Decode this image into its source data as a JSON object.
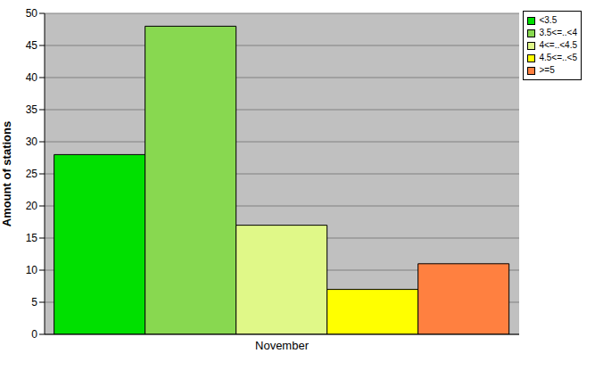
{
  "chart_data": {
    "type": "bar",
    "categories": [
      "November"
    ],
    "ylabel": "Amount of stations",
    "series": [
      {
        "name": "<3.5",
        "color": "#00e000",
        "values": [
          28
        ]
      },
      {
        "name": "3.5<=..<4",
        "color": "#88d850",
        "values": [
          48
        ]
      },
      {
        "name": "4<=..<4.5",
        "color": "#e0f888",
        "values": [
          17
        ]
      },
      {
        "name": "4.5<=..<5",
        "color": "#ffff00",
        "values": [
          7
        ]
      },
      {
        "name": ">=5",
        "color": "#ff8040",
        "values": [
          11
        ]
      }
    ],
    "ylim": [
      0,
      50
    ],
    "yticks": [
      0,
      5,
      10,
      15,
      20,
      25,
      30,
      35,
      40,
      45,
      50
    ],
    "grid": true,
    "legend": "top right"
  }
}
